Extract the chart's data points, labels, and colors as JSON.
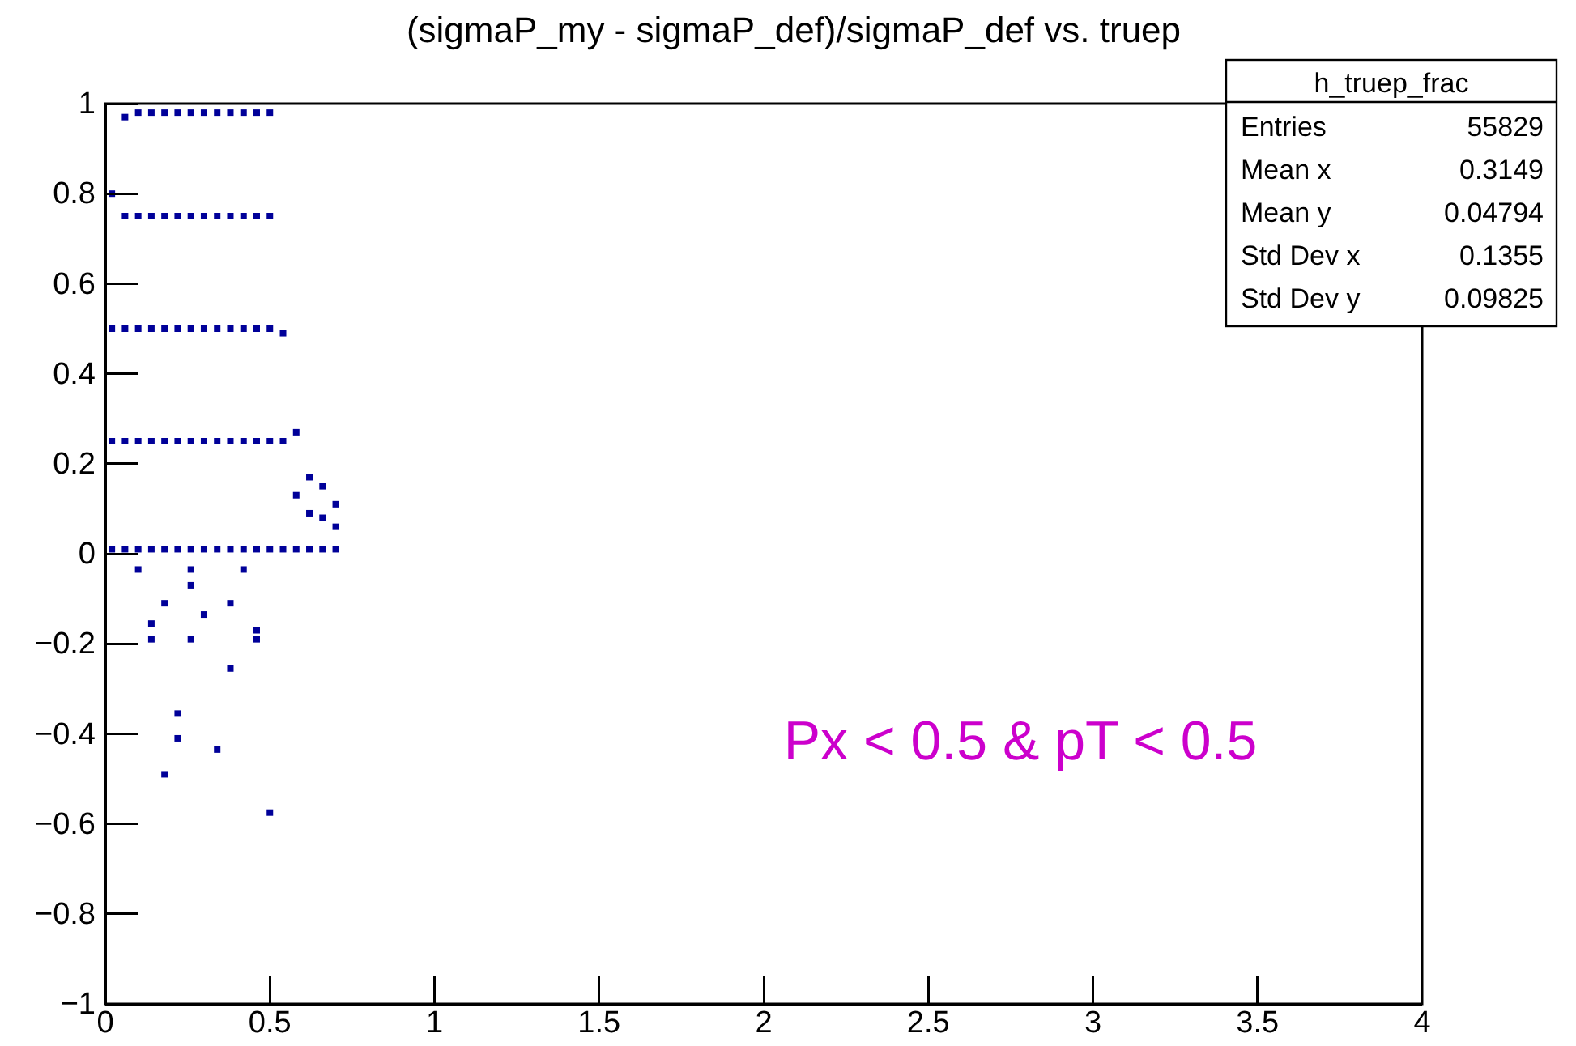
{
  "chart_data": {
    "type": "scatter",
    "title": "(sigmaP_my - sigmaP_def)/sigmaP_def vs. truep",
    "x": [
      0.02,
      0.02,
      0.02,
      0.02,
      0.06,
      0.06,
      0.06,
      0.06,
      0.06,
      0.1,
      0.1,
      0.1,
      0.1,
      0.1,
      0.14,
      0.14,
      0.14,
      0.14,
      0.14,
      0.18,
      0.18,
      0.18,
      0.18,
      0.18,
      0.22,
      0.22,
      0.22,
      0.22,
      0.22,
      0.26,
      0.26,
      0.26,
      0.26,
      0.26,
      0.3,
      0.3,
      0.3,
      0.3,
      0.3,
      0.34,
      0.34,
      0.34,
      0.34,
      0.34,
      0.38,
      0.38,
      0.38,
      0.38,
      0.38,
      0.42,
      0.42,
      0.42,
      0.42,
      0.42,
      0.46,
      0.46,
      0.46,
      0.46,
      0.46,
      0.5,
      0.5,
      0.5,
      0.5,
      0.5,
      0.54,
      0.54,
      0.54,
      0.58,
      0.58,
      0.58,
      0.62,
      0.62,
      0.62,
      0.66,
      0.66,
      0.66,
      0.7,
      0.7,
      0.7,
      0.26,
      0.26,
      0.18,
      0.3,
      0.38,
      0.14,
      0.14,
      0.26,
      0.46,
      0.46,
      0.38,
      0.22,
      0.22,
      0.34,
      0.18,
      0.5,
      0.1,
      0.42
    ],
    "values": [
      0.01,
      0.25,
      0.5,
      0.8,
      0.01,
      0.25,
      0.5,
      0.75,
      0.97,
      0.01,
      0.25,
      0.5,
      0.75,
      0.98,
      0.01,
      0.25,
      0.5,
      0.75,
      0.98,
      0.01,
      0.25,
      0.5,
      0.75,
      0.98,
      0.01,
      0.25,
      0.5,
      0.75,
      0.98,
      0.01,
      0.25,
      0.5,
      0.75,
      0.98,
      0.01,
      0.25,
      0.5,
      0.75,
      0.98,
      0.01,
      0.25,
      0.5,
      0.75,
      0.98,
      0.01,
      0.25,
      0.5,
      0.75,
      0.98,
      0.01,
      0.25,
      0.5,
      0.75,
      0.98,
      0.01,
      0.25,
      0.5,
      0.75,
      0.98,
      0.01,
      0.25,
      0.5,
      0.75,
      0.98,
      0.01,
      0.25,
      0.49,
      0.01,
      0.13,
      0.27,
      0.01,
      0.09,
      0.17,
      0.01,
      0.08,
      0.15,
      0.01,
      0.06,
      0.11,
      -0.035,
      -0.07,
      -0.11,
      -0.135,
      -0.11,
      -0.155,
      -0.19,
      -0.19,
      -0.17,
      -0.19,
      -0.255,
      -0.355,
      -0.41,
      -0.435,
      -0.49,
      -0.575,
      -0.035,
      -0.035
    ],
    "color": "#000099",
    "marker": "square",
    "xlim": [
      0,
      4
    ],
    "ylim": [
      -1,
      1
    ],
    "xticks": [
      0,
      0.5,
      1,
      1.5,
      2,
      2.5,
      3,
      3.5,
      4
    ],
    "yticks": [
      {
        "value": -1,
        "label": "−1"
      },
      {
        "value": -0.8,
        "label": "−0.8"
      },
      {
        "value": -0.6,
        "label": "−0.6"
      },
      {
        "value": -0.4,
        "label": "−0.4"
      },
      {
        "value": -0.2,
        "label": "−0.2"
      },
      0,
      0.2,
      0.4,
      0.6,
      0.8,
      1
    ],
    "annotations": [
      "Px < 0.5 & pT < 0.5",
      "h_truep_frac",
      "Entries",
      "55829",
      "Mean x",
      "0.3149",
      "Mean y",
      "0.04794",
      "Std Dev x",
      "0.1355",
      "Std Dev y",
      "0.09825"
    ]
  }
}
